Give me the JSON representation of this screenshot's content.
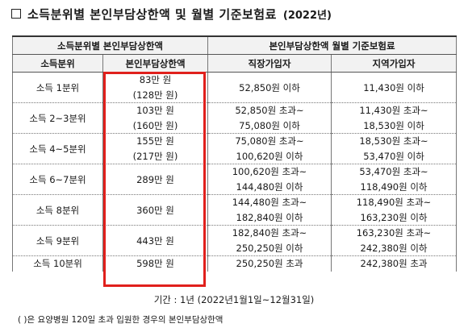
{
  "title": {
    "checkbox": "",
    "main": "소득분위별 본인부담상한액 및 월별 기준보험료",
    "year": "(2022년)"
  },
  "table": {
    "header_group_left": "소득분위별 본인부담상한액",
    "header_group_right": "본인부담상한액 월별 기준보험료",
    "col_decile": "소득분위",
    "col_cap": "본인부담상한액",
    "col_employee": "직장가입자",
    "col_regional": "지역가입자",
    "rows": [
      {
        "decile": "소득 1분위",
        "cap1": "83만 원",
        "cap2": "(128만 원)",
        "emp1": "52,850원 이하",
        "emp2": "",
        "reg1": "11,430원 이하",
        "reg2": ""
      },
      {
        "decile": "소득 2~3분위",
        "cap1": "103만 원",
        "cap2": "(160만 원)",
        "emp1": "52,850원 초과~",
        "emp2": "75,080원 이하",
        "reg1": "11,430원 초과~",
        "reg2": "18,530원 이하"
      },
      {
        "decile": "소득 4~5분위",
        "cap1": "155만 원",
        "cap2": "(217만 원)",
        "emp1": "75,080원 초과~",
        "emp2": "100,620원 이하",
        "reg1": "18,530원 초과~",
        "reg2": "53,470원 이하"
      },
      {
        "decile": "소득 6~7분위",
        "cap1": "289만 원",
        "cap2": "",
        "emp1": "100,620원 초과~",
        "emp2": "144,480원 이하",
        "reg1": "53,470원 초과~",
        "reg2": "118,490원 이하"
      },
      {
        "decile": "소득 8분위",
        "cap1": "360만 원",
        "cap2": "",
        "emp1": "144,480원 초과~",
        "emp2": "182,840원 이하",
        "reg1": "118,490원 초과~",
        "reg2": "163,230원 이하"
      },
      {
        "decile": "소득 9분위",
        "cap1": "443만 원",
        "cap2": "",
        "emp1": "182,840원 초과~",
        "emp2": "250,250원 이하",
        "reg1": "163,230원 초과~",
        "reg2": "242,380원 이하"
      },
      {
        "decile": "소득 10분위",
        "cap1": "598만 원",
        "cap2": "",
        "emp1": "250,250원 초과",
        "emp2": "",
        "reg1": "242,380원 초과",
        "reg2": ""
      }
    ]
  },
  "period": "기간 : 1년 (2022년1월1일~12월31일)",
  "note": "( )은 요양병원 120일 초과 입원한 경우의 본인부담상한액",
  "colors": {
    "highlight": "#e0201c",
    "header_bg": "#f2f2f2"
  }
}
